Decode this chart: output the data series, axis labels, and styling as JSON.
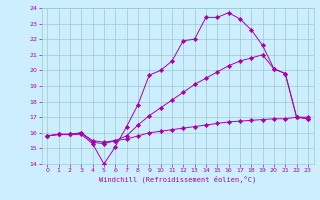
{
  "title": "",
  "xlabel": "Windchill (Refroidissement éolien,°C)",
  "xlim": [
    -0.5,
    23.5
  ],
  "ylim": [
    14,
    24
  ],
  "xticks": [
    0,
    1,
    2,
    3,
    4,
    5,
    6,
    7,
    8,
    9,
    10,
    11,
    12,
    13,
    14,
    15,
    16,
    17,
    18,
    19,
    20,
    21,
    22,
    23
  ],
  "yticks": [
    14,
    15,
    16,
    17,
    18,
    19,
    20,
    21,
    22,
    23,
    24
  ],
  "bg_color": "#cceeff",
  "line_color": "#aa00aa",
  "grid_color": "#99cccc",
  "line1_x": [
    0,
    1,
    2,
    3,
    4,
    5,
    6,
    7,
    8,
    9,
    10,
    11,
    12,
    13,
    14,
    15,
    16,
    17,
    18,
    19,
    20,
    21,
    22,
    23
  ],
  "line1_y": [
    15.8,
    15.9,
    15.9,
    15.9,
    15.3,
    14.0,
    15.1,
    16.4,
    17.8,
    19.7,
    20.0,
    20.6,
    21.9,
    22.0,
    23.4,
    23.4,
    23.7,
    23.3,
    22.6,
    21.6,
    20.1,
    19.8,
    17.0,
    16.9
  ],
  "line2_x": [
    0,
    1,
    2,
    3,
    4,
    5,
    6,
    7,
    8,
    9,
    10,
    11,
    12,
    13,
    14,
    15,
    16,
    17,
    18,
    19,
    20,
    21,
    22,
    23
  ],
  "line2_y": [
    15.8,
    15.9,
    15.9,
    16.0,
    15.4,
    15.3,
    15.5,
    15.8,
    16.5,
    17.1,
    17.6,
    18.1,
    18.6,
    19.1,
    19.5,
    19.9,
    20.3,
    20.6,
    20.8,
    21.0,
    20.1,
    19.8,
    17.0,
    16.9
  ],
  "line3_x": [
    0,
    1,
    2,
    3,
    4,
    5,
    6,
    7,
    8,
    9,
    10,
    11,
    12,
    13,
    14,
    15,
    16,
    17,
    18,
    19,
    20,
    21,
    22,
    23
  ],
  "line3_y": [
    15.8,
    15.9,
    15.9,
    16.0,
    15.5,
    15.4,
    15.5,
    15.6,
    15.8,
    16.0,
    16.1,
    16.2,
    16.3,
    16.4,
    16.5,
    16.6,
    16.7,
    16.75,
    16.8,
    16.85,
    16.9,
    16.9,
    17.0,
    17.0
  ]
}
